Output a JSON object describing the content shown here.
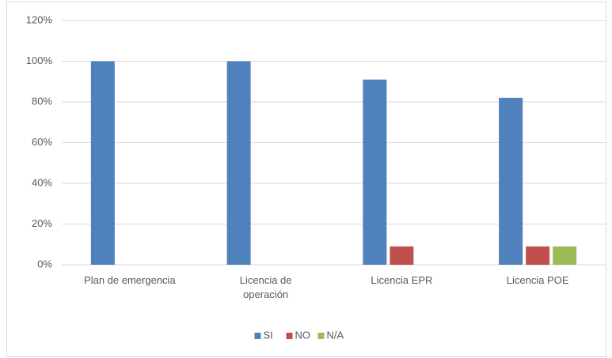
{
  "chart_data": {
    "type": "bar",
    "categories": [
      "Plan de emergencia",
      "Licencia de operación",
      "Licencia EPR",
      "Licencia POE"
    ],
    "series": [
      {
        "name": "SI",
        "color": "#4f81bd",
        "values": [
          100,
          100,
          91,
          82
        ]
      },
      {
        "name": "NO",
        "color": "#c0504d",
        "values": [
          0,
          0,
          9,
          9
        ]
      },
      {
        "name": "N/A",
        "color": "#9bbb59",
        "values": [
          0,
          0,
          0,
          9
        ]
      }
    ],
    "ylim": [
      0,
      120
    ],
    "yticks": [
      {
        "value": 0,
        "label": "0%"
      },
      {
        "value": 20,
        "label": "20%"
      },
      {
        "value": 40,
        "label": "40%"
      },
      {
        "value": 60,
        "label": "60%"
      },
      {
        "value": 80,
        "label": "80%"
      },
      {
        "value": 100,
        "label": "100%"
      },
      {
        "value": 120,
        "label": "120%"
      }
    ],
    "grid": true,
    "legend": "bottom"
  }
}
